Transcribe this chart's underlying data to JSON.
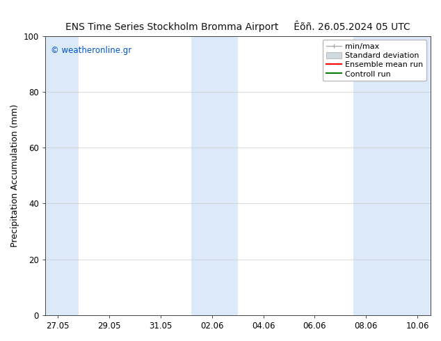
{
  "title_left": "ENS Time Series Stockholm Bromma Airport",
  "title_right": "Êõñ. 26.05.2024 05 UTC",
  "ylabel": "Precipitation Accumulation (mm)",
  "watermark": "© weatheronline.gr",
  "watermark_color": "#0055cc",
  "ylim": [
    0,
    100
  ],
  "yticks": [
    0,
    20,
    40,
    60,
    80,
    100
  ],
  "xtick_labels": [
    "27.05",
    "29.05",
    "31.05",
    "02.06",
    "04.06",
    "06.06",
    "08.06",
    "10.06"
  ],
  "background_color": "#ffffff",
  "plot_bg_color": "#ffffff",
  "shaded_color": "#dce9f8",
  "legend_labels": [
    "min/max",
    "Standard deviation",
    "Ensemble mean run",
    "Controll run"
  ],
  "legend_colors_line": [
    "#aaaaaa",
    "#c8d8e8",
    "#ff0000",
    "#008000"
  ],
  "grid_color": "#cccccc",
  "spine_color": "#444444",
  "title_fontsize": 10,
  "tick_fontsize": 8.5,
  "ylabel_fontsize": 9,
  "legend_fontsize": 8
}
